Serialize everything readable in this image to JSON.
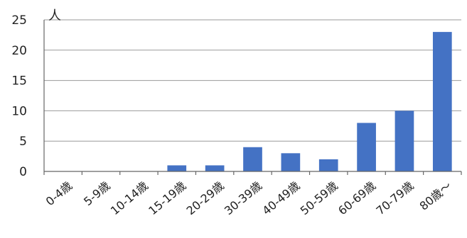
{
  "chart_data": {
    "type": "bar",
    "unit_label": "人",
    "categories": [
      "0-4歳",
      "5-9歳",
      "10-14歳",
      "15-19歳",
      "20-29歳",
      "30-39歳",
      "40-49歳",
      "50-59歳",
      "60-69歳",
      "70-79歳",
      "80歳～"
    ],
    "values": [
      0,
      0,
      0,
      1,
      1,
      4,
      3,
      2,
      8,
      10,
      23
    ],
    "ylim": [
      0,
      25
    ],
    "yticks": [
      0,
      5,
      10,
      15,
      20,
      25
    ],
    "grid": true,
    "legend": "none",
    "bar_color": "#4472c4"
  }
}
